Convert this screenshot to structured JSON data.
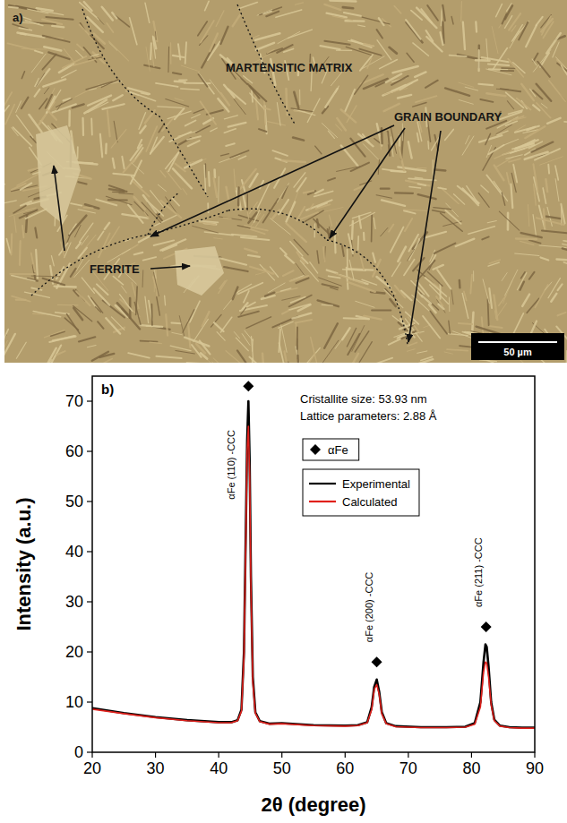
{
  "micrograph": {
    "panel_label": "a)",
    "labels": {
      "matrix": "MARTENSITIC MATRIX",
      "grain_boundary": "GRAIN BOUNDARY",
      "ferrite": "FERRITE"
    },
    "scale_bar": "50 µm"
  },
  "chart_data": {
    "type": "line",
    "panel_label": "b)",
    "x_label": "2θ (degree)",
    "y_label": "Intensity (a.u.)",
    "annotations": [
      "Cristallite size: 53.93 nm",
      "Lattice parameters: 2.88 Å"
    ],
    "x": [
      20,
      25,
      30,
      35,
      40,
      42,
      43,
      43.6,
      44.0,
      44.3,
      44.5,
      44.7,
      44.9,
      45.1,
      45.4,
      45.8,
      46.5,
      48,
      50,
      55,
      60,
      62,
      63.5,
      64.2,
      64.6,
      65.0,
      65.4,
      65.8,
      66.5,
      68,
      72,
      76,
      79,
      80.5,
      81.4,
      81.9,
      82.2,
      82.4,
      82.7,
      83.1,
      83.6,
      84.5,
      86,
      88,
      90
    ],
    "series": [
      {
        "name": "Experimental",
        "color": "#000000",
        "values": [
          8.8,
          7.8,
          7.0,
          6.4,
          6.0,
          6.0,
          6.4,
          8.5,
          20,
          45,
          62,
          70,
          58,
          35,
          15,
          8,
          6.2,
          5.7,
          5.8,
          5.4,
          5.3,
          5.4,
          6.0,
          9,
          13,
          14.5,
          12,
          8,
          5.8,
          5.2,
          5.0,
          5.0,
          5.1,
          5.8,
          10,
          18,
          21.5,
          21,
          17,
          10,
          6.5,
          5.3,
          5.0,
          4.9,
          4.9
        ]
      },
      {
        "name": "Calculated",
        "color": "#e0201b",
        "values": [
          8.6,
          7.7,
          6.9,
          6.3,
          5.9,
          5.9,
          6.3,
          8.2,
          19,
          43,
          60,
          65,
          55,
          33,
          14,
          7.8,
          6.1,
          5.6,
          5.7,
          5.3,
          5.2,
          5.3,
          5.9,
          8.5,
          12.5,
          13.5,
          11.5,
          7.7,
          5.7,
          5.1,
          4.9,
          4.9,
          5.0,
          5.6,
          9,
          16,
          18,
          17.8,
          15,
          9.5,
          6.3,
          5.2,
          4.9,
          4.8,
          4.8
        ]
      }
    ],
    "peaks": {
      "name": "αFe",
      "color": "#000000",
      "marker": "diamond",
      "x": [
        44.7,
        65.0,
        82.3
      ],
      "values": [
        73,
        18,
        25
      ],
      "labels": [
        "αFe (110) -CCC",
        "αFe (200) -CCC",
        "αFe (211) -CCC"
      ]
    },
    "xlim": [
      20,
      90
    ],
    "xticks": [
      20,
      30,
      40,
      50,
      60,
      70,
      80,
      90
    ],
    "ylim": [
      0,
      75
    ],
    "yticks": [
      0,
      10,
      20,
      30,
      40,
      50,
      60,
      70
    ],
    "grid": false,
    "legend": "upper right"
  }
}
